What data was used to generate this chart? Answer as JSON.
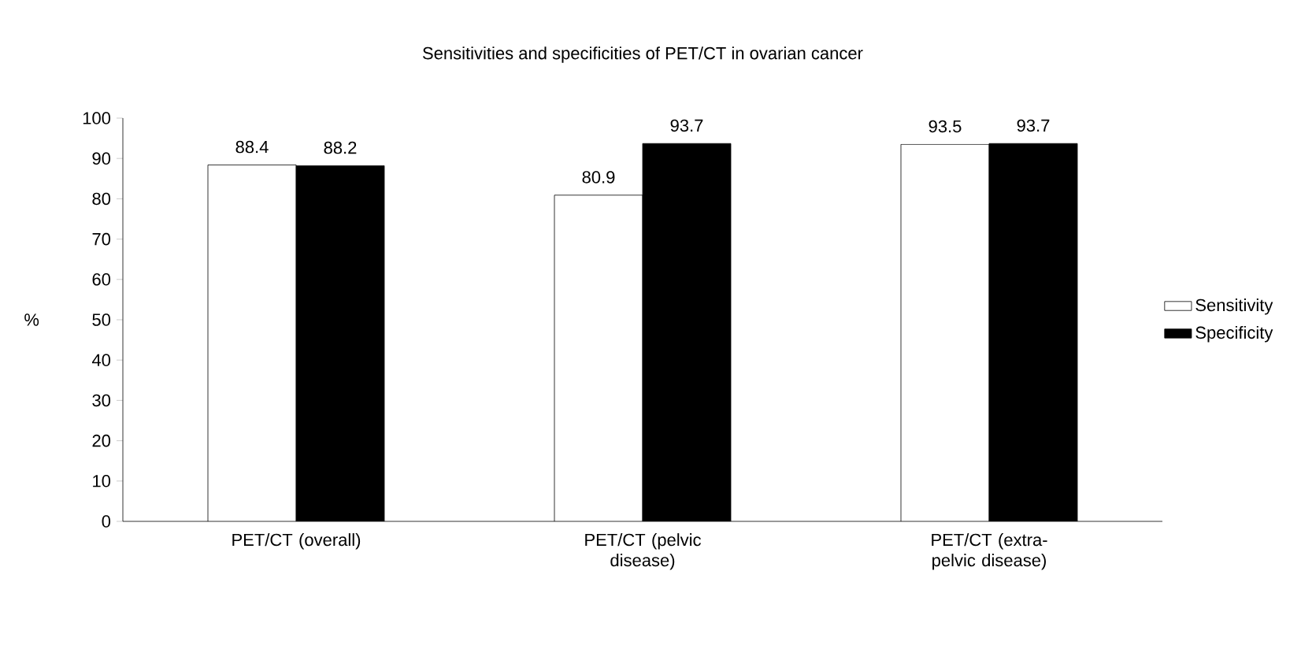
{
  "chart_data": {
    "type": "bar",
    "title": "Sensitivities and specificities of PET/CT in ovarian cancer",
    "ylabel": "%",
    "categories": [
      "PET/CT (overall)",
      "PET/CT (pelvic disease)",
      "PET/CT (extra-pelvic disease)"
    ],
    "series": [
      {
        "name": "Sensitivity",
        "color": "#ffffff",
        "values": [
          88.4,
          80.9,
          93.5
        ]
      },
      {
        "name": "Specificity",
        "color": "#000000",
        "values": [
          88.2,
          93.7,
          93.7
        ]
      }
    ],
    "ylim": [
      0,
      100
    ],
    "yticks": [
      0,
      10,
      20,
      30,
      40,
      50,
      60,
      70,
      80,
      90,
      100
    ],
    "data_labels": true,
    "legend": "right",
    "grid": false
  }
}
